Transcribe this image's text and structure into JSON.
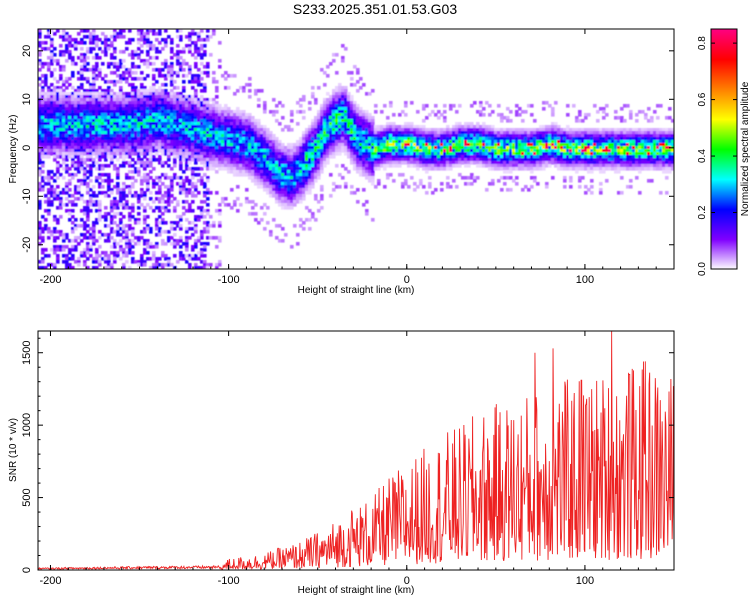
{
  "figure_title": "S233.2025.351.01.53.G03",
  "chart_data": [
    {
      "type": "heatmap",
      "title": "S233.2025.351.01.53.G03",
      "xlabel": "Height of straight line (km)",
      "ylabel": "Frequency (Hz)",
      "xlim": [
        -207,
        150
      ],
      "ylim": [
        -25,
        24.5
      ],
      "xticks": [
        -200,
        -100,
        0,
        100
      ],
      "yticks": [
        -20,
        -10,
        0,
        10,
        20
      ],
      "xtick_labels": [
        "-200",
        "-100",
        "0",
        "100"
      ],
      "ytick_labels": [
        "-20",
        "-10",
        "0",
        "10",
        "20"
      ],
      "ridge": {
        "x": [
          -155,
          -140,
          -130,
          -120,
          -110,
          -100,
          -90,
          -80,
          -72,
          -65,
          -58,
          -52,
          -46,
          -40,
          -36,
          -32,
          -28,
          -24,
          -20,
          -10,
          0,
          10,
          20,
          30,
          40,
          50,
          60,
          70,
          80,
          90,
          100,
          110,
          120,
          130,
          140,
          150
        ],
        "y": [
          5,
          6,
          5,
          4,
          3,
          2,
          1,
          -2,
          -5,
          -6,
          -3,
          0,
          4,
          6,
          7,
          4,
          2,
          1,
          0,
          1,
          1,
          0,
          0,
          1,
          1,
          0,
          0,
          0,
          1,
          0,
          0,
          0,
          0,
          0,
          0,
          0
        ]
      },
      "colorbar": {
        "label": "Normalized spectral amplitude",
        "range": [
          0.0,
          0.85
        ],
        "ticks": [
          0.0,
          0.2,
          0.4,
          0.6,
          0.8
        ],
        "tick_labels": [
          "0.0",
          "0.2",
          "0.4",
          "0.6",
          "0.8"
        ],
        "colors": [
          "#ffffff",
          "#8000ff",
          "#0000ff",
          "#00ffff",
          "#00ff00",
          "#ffff00",
          "#ff8000",
          "#ff0000",
          "#ff0080"
        ]
      }
    },
    {
      "type": "line",
      "xlabel": "Height of straight line (km)",
      "ylabel": "SNR (10 * v/v)",
      "xlim": [
        -207,
        150
      ],
      "ylim": [
        0,
        1650
      ],
      "xticks": [
        -200,
        -100,
        0,
        100
      ],
      "yticks": [
        0,
        500,
        1000,
        1500
      ],
      "xtick_labels": [
        "-200",
        "-100",
        "0",
        "100"
      ],
      "ytick_labels": [
        "0",
        "500",
        "1000",
        "1500"
      ],
      "color": "#ee2222",
      "envelope": {
        "x": [
          -207,
          -150,
          -105,
          -100,
          -80,
          -60,
          -45,
          -30,
          -20,
          -10,
          0,
          10,
          20,
          30,
          40,
          60,
          80,
          100,
          120,
          135,
          150
        ],
        "y": [
          15,
          25,
          30,
          80,
          120,
          200,
          300,
          450,
          500,
          650,
          750,
          850,
          950,
          1000,
          1100,
          1200,
          1300,
          1350,
          1400,
          1450,
          1350
        ]
      },
      "peaks": [
        {
          "x": 72,
          "y": 1500
        },
        {
          "x": 82,
          "y": 1530
        },
        {
          "x": 98,
          "y": 1310
        },
        {
          "x": 115,
          "y": 1650
        },
        {
          "x": 125,
          "y": 1350
        },
        {
          "x": 134,
          "y": 1440
        }
      ]
    }
  ]
}
